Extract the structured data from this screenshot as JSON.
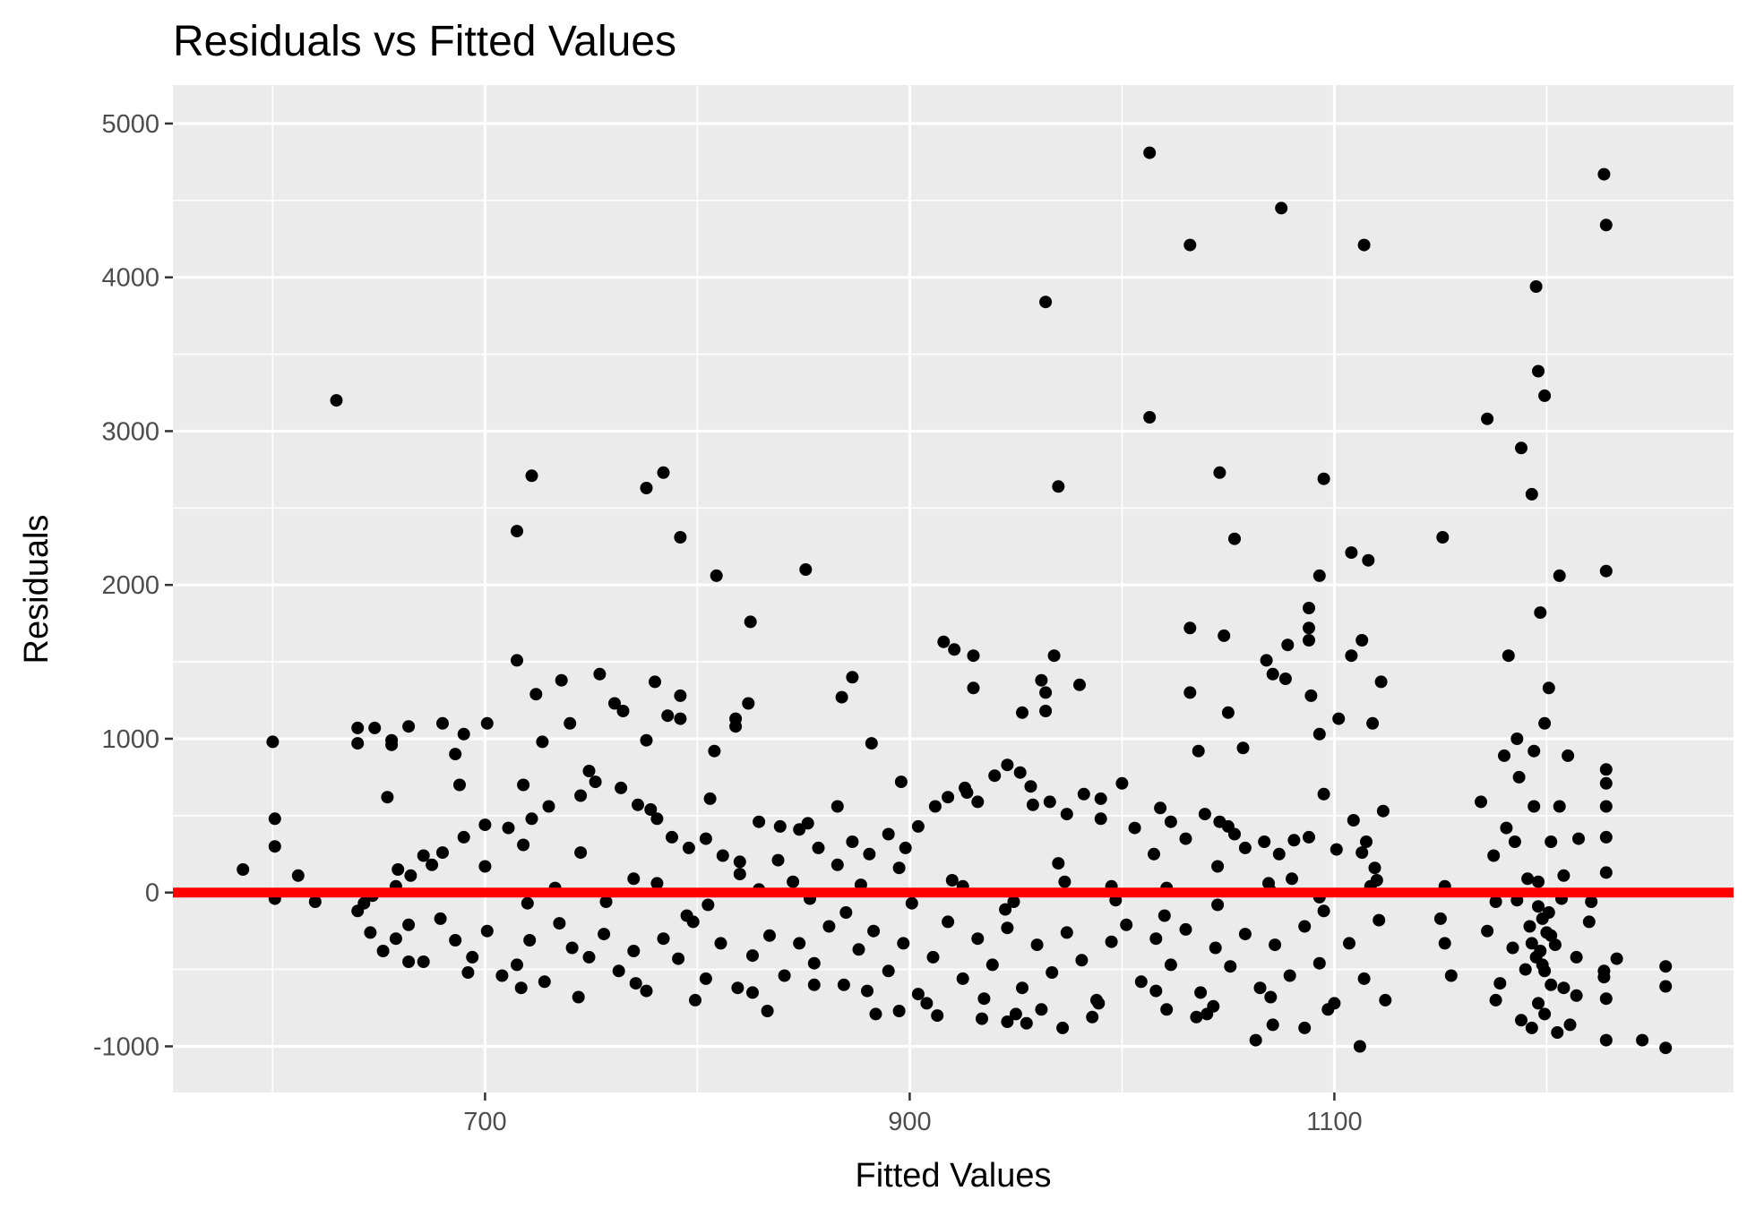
{
  "chart_data": {
    "type": "scatter",
    "title": "Residuals vs Fitted Values",
    "xlabel": "Fitted Values",
    "ylabel": "Residuals",
    "xlim": [
      553,
      1288
    ],
    "ylim": [
      -1300,
      5250
    ],
    "x_ticks": [
      700,
      900,
      1100
    ],
    "x_tick_labels": [
      "700",
      "900",
      "1100"
    ],
    "y_ticks": [
      -1000,
      0,
      1000,
      2000,
      3000,
      4000,
      5000
    ],
    "y_tick_labels": [
      "-1000",
      "0",
      "1000",
      "2000",
      "3000",
      "4000",
      "5000"
    ],
    "grid": true,
    "legend": "none",
    "colors": {
      "panel_background": "#ebebeb",
      "grid_line": "#ffffff",
      "point": "#000000",
      "reference_line": "#ff0000",
      "tick_label": "#4d4d4d"
    },
    "reference_line": {
      "y": 0
    },
    "points": [
      [
        586,
        150
      ],
      [
        600,
        980
      ],
      [
        601,
        480
      ],
      [
        601,
        300
      ],
      [
        601,
        -40
      ],
      [
        612,
        110
      ],
      [
        620,
        -60
      ],
      [
        630,
        3200
      ],
      [
        715,
        2350
      ],
      [
        722,
        2710
      ],
      [
        776,
        2630
      ],
      [
        784,
        2730
      ],
      [
        792,
        2310
      ],
      [
        809,
        2060
      ],
      [
        825,
        1760
      ],
      [
        851,
        2100
      ],
      [
        964,
        3840
      ],
      [
        970,
        2640
      ],
      [
        1013,
        4810
      ],
      [
        1013,
        3090
      ],
      [
        1032,
        4210
      ],
      [
        1046,
        2730
      ],
      [
        1053,
        2300
      ],
      [
        1075,
        4450
      ],
      [
        1095,
        2690
      ],
      [
        1093,
        2060
      ],
      [
        1108,
        2210
      ],
      [
        1114,
        4210
      ],
      [
        1116,
        2160
      ],
      [
        1151,
        2310
      ],
      [
        1172,
        3080
      ],
      [
        1188,
        2890
      ],
      [
        1193,
        2590
      ],
      [
        1195,
        3940
      ],
      [
        1196,
        3390
      ],
      [
        1199,
        3230
      ],
      [
        1206,
        2060
      ],
      [
        1197,
        1820
      ],
      [
        1227,
        4670
      ],
      [
        1228,
        4340
      ],
      [
        1228,
        2090
      ],
      [
        715,
        1510
      ],
      [
        724,
        1290
      ],
      [
        736,
        1380
      ],
      [
        754,
        1420
      ],
      [
        761,
        1230
      ],
      [
        780,
        1370
      ],
      [
        786,
        1150
      ],
      [
        792,
        1280
      ],
      [
        792,
        1130
      ],
      [
        808,
        920
      ],
      [
        818,
        1130
      ],
      [
        818,
        1080
      ],
      [
        824,
        1230
      ],
      [
        740,
        1100
      ],
      [
        765,
        1180
      ],
      [
        776,
        990
      ],
      [
        868,
        1270
      ],
      [
        873,
        1400
      ],
      [
        882,
        970
      ],
      [
        916,
        1630
      ],
      [
        921,
        1580
      ],
      [
        930,
        1540
      ],
      [
        930,
        1330
      ],
      [
        953,
        1170
      ],
      [
        962,
        1380
      ],
      [
        964,
        1300
      ],
      [
        964,
        1180
      ],
      [
        968,
        1540
      ],
      [
        980,
        1350
      ],
      [
        1032,
        1720
      ],
      [
        1032,
        1300
      ],
      [
        1048,
        1670
      ],
      [
        1050,
        1170
      ],
      [
        1057,
        940
      ],
      [
        1068,
        1510
      ],
      [
        1071,
        1420
      ],
      [
        1077,
        1390
      ],
      [
        1078,
        1610
      ],
      [
        1088,
        1850
      ],
      [
        1088,
        1720
      ],
      [
        1088,
        1640
      ],
      [
        1089,
        1280
      ],
      [
        1093,
        1030
      ],
      [
        1102,
        1130
      ],
      [
        1108,
        1540
      ],
      [
        1113,
        1640
      ],
      [
        1118,
        1100
      ],
      [
        1122,
        1370
      ],
      [
        1182,
        1540
      ],
      [
        1186,
        1000
      ],
      [
        1194,
        920
      ],
      [
        1199,
        1100
      ],
      [
        1201,
        1330
      ],
      [
        640,
        1070
      ],
      [
        640,
        970
      ],
      [
        648,
        1070
      ],
      [
        656,
        990
      ],
      [
        656,
        960
      ],
      [
        664,
        1080
      ],
      [
        680,
        1100
      ],
      [
        686,
        900
      ],
      [
        690,
        1030
      ],
      [
        701,
        1100
      ],
      [
        727,
        980
      ],
      [
        1036,
        920
      ],
      [
        1180,
        890
      ],
      [
        1210,
        890
      ],
      [
        1228,
        800
      ],
      [
        1228,
        710
      ],
      [
        1228,
        560
      ],
      [
        1228,
        360
      ],
      [
        1228,
        130
      ],
      [
        1256,
        -480
      ],
      [
        1256,
        -610
      ],
      [
        1256,
        -1010
      ],
      [
        1245,
        -960
      ],
      [
        1228,
        -960
      ],
      [
        1233,
        -430
      ],
      [
        1227,
        -510
      ],
      [
        1227,
        -550
      ],
      [
        1228,
        -690
      ],
      [
        1214,
        -670
      ],
      [
        1112,
        -1000
      ],
      [
        1063,
        -960
      ],
      [
        1086,
        -880
      ],
      [
        1071,
        -860
      ],
      [
        1021,
        -760
      ],
      [
        1035,
        -810
      ],
      [
        1040,
        -790
      ],
      [
        946,
        -840
      ],
      [
        934,
        -820
      ],
      [
        950,
        -790
      ],
      [
        955,
        -850
      ],
      [
        972,
        -880
      ],
      [
        986,
        -810
      ],
      [
        913,
        -800
      ],
      [
        895,
        -770
      ],
      [
        884,
        -790
      ],
      [
        833,
        -770
      ],
      [
        643,
        -70
      ],
      [
        647,
        -20
      ],
      [
        658,
        40
      ],
      [
        659,
        150
      ],
      [
        665,
        110
      ],
      [
        671,
        240
      ],
      [
        675,
        180
      ],
      [
        680,
        260
      ],
      [
        690,
        360
      ],
      [
        700,
        440
      ],
      [
        711,
        420
      ],
      [
        718,
        310
      ],
      [
        722,
        480
      ],
      [
        730,
        560
      ],
      [
        745,
        630
      ],
      [
        752,
        720
      ],
      [
        764,
        680
      ],
      [
        772,
        570
      ],
      [
        781,
        480
      ],
      [
        788,
        360
      ],
      [
        796,
        290
      ],
      [
        804,
        350
      ],
      [
        812,
        240
      ],
      [
        820,
        120
      ],
      [
        829,
        460
      ],
      [
        839,
        430
      ],
      [
        848,
        410
      ],
      [
        852,
        450
      ],
      [
        857,
        290
      ],
      [
        866,
        180
      ],
      [
        873,
        330
      ],
      [
        881,
        250
      ],
      [
        890,
        380
      ],
      [
        898,
        290
      ],
      [
        904,
        430
      ],
      [
        912,
        560
      ],
      [
        918,
        620
      ],
      [
        926,
        680
      ],
      [
        932,
        590
      ],
      [
        940,
        760
      ],
      [
        946,
        830
      ],
      [
        952,
        780
      ],
      [
        957,
        690
      ],
      [
        966,
        590
      ],
      [
        974,
        510
      ],
      [
        982,
        640
      ],
      [
        990,
        610
      ],
      [
        1000,
        710
      ],
      [
        1006,
        420
      ],
      [
        1015,
        250
      ],
      [
        1023,
        460
      ],
      [
        1030,
        350
      ],
      [
        1039,
        510
      ],
      [
        1046,
        460
      ],
      [
        1053,
        380
      ],
      [
        1058,
        290
      ],
      [
        1067,
        330
      ],
      [
        1074,
        250
      ],
      [
        1080,
        90
      ],
      [
        1088,
        360
      ],
      [
        1095,
        640
      ],
      [
        1101,
        280
      ],
      [
        1109,
        470
      ],
      [
        1115,
        330
      ],
      [
        1120,
        80
      ],
      [
        1123,
        530
      ],
      [
        1169,
        590
      ],
      [
        1175,
        240
      ],
      [
        1181,
        420
      ],
      [
        1187,
        750
      ],
      [
        1194,
        560
      ],
      [
        1202,
        330
      ],
      [
        1208,
        110
      ],
      [
        1215,
        350
      ],
      [
        1221,
        -60
      ],
      [
        640,
        -120
      ],
      [
        646,
        -260
      ],
      [
        652,
        -380
      ],
      [
        658,
        -300
      ],
      [
        664,
        -210
      ],
      [
        671,
        -450
      ],
      [
        679,
        -170
      ],
      [
        686,
        -310
      ],
      [
        694,
        -420
      ],
      [
        701,
        -250
      ],
      [
        708,
        -540
      ],
      [
        715,
        -470
      ],
      [
        721,
        -310
      ],
      [
        728,
        -580
      ],
      [
        735,
        -200
      ],
      [
        741,
        -360
      ],
      [
        749,
        -420
      ],
      [
        756,
        -270
      ],
      [
        763,
        -510
      ],
      [
        770,
        -380
      ],
      [
        776,
        -640
      ],
      [
        784,
        -300
      ],
      [
        791,
        -430
      ],
      [
        798,
        -190
      ],
      [
        804,
        -560
      ],
      [
        811,
        -330
      ],
      [
        819,
        -620
      ],
      [
        826,
        -410
      ],
      [
        834,
        -280
      ],
      [
        841,
        -540
      ],
      [
        848,
        -330
      ],
      [
        855,
        -460
      ],
      [
        862,
        -220
      ],
      [
        869,
        -600
      ],
      [
        876,
        -370
      ],
      [
        883,
        -250
      ],
      [
        890,
        -510
      ],
      [
        897,
        -330
      ],
      [
        904,
        -660
      ],
      [
        911,
        -420
      ],
      [
        918,
        -190
      ],
      [
        925,
        -560
      ],
      [
        932,
        -300
      ],
      [
        939,
        -470
      ],
      [
        946,
        -230
      ],
      [
        953,
        -620
      ],
      [
        960,
        -340
      ],
      [
        967,
        -520
      ],
      [
        974,
        -260
      ],
      [
        981,
        -440
      ],
      [
        988,
        -700
      ],
      [
        995,
        -320
      ],
      [
        1002,
        -210
      ],
      [
        1009,
        -580
      ],
      [
        1016,
        -300
      ],
      [
        1023,
        -470
      ],
      [
        1030,
        -240
      ],
      [
        1037,
        -650
      ],
      [
        1044,
        -360
      ],
      [
        1051,
        -480
      ],
      [
        1058,
        -270
      ],
      [
        1065,
        -620
      ],
      [
        1072,
        -340
      ],
      [
        1079,
        -540
      ],
      [
        1086,
        -220
      ],
      [
        1093,
        -460
      ],
      [
        1100,
        -720
      ],
      [
        1107,
        -330
      ],
      [
        1114,
        -560
      ],
      [
        1121,
        -180
      ],
      [
        1150,
        -170
      ],
      [
        1152,
        -330
      ],
      [
        1155,
        -540
      ],
      [
        1172,
        -250
      ],
      [
        1178,
        -590
      ],
      [
        1184,
        -360
      ],
      [
        1190,
        -500
      ],
      [
        1196,
        -720
      ],
      [
        1202,
        -280
      ],
      [
        1208,
        -620
      ],
      [
        1214,
        -420
      ],
      [
        1220,
        -190
      ],
      [
        733,
        30
      ],
      [
        757,
        -60
      ],
      [
        781,
        60
      ],
      [
        805,
        -80
      ],
      [
        829,
        20
      ],
      [
        853,
        -40
      ],
      [
        877,
        50
      ],
      [
        901,
        -70
      ],
      [
        925,
        40
      ],
      [
        949,
        -60
      ],
      [
        973,
        70
      ],
      [
        997,
        -50
      ],
      [
        1021,
        30
      ],
      [
        1045,
        -80
      ],
      [
        1069,
        60
      ],
      [
        1093,
        -30
      ],
      [
        1117,
        40
      ],
      [
        1152,
        40
      ],
      [
        1176,
        -60
      ],
      [
        1196,
        70
      ],
      [
        1207,
        -40
      ],
      [
        664,
        -450
      ],
      [
        692,
        -520
      ],
      [
        717,
        -620
      ],
      [
        744,
        -680
      ],
      [
        771,
        -590
      ],
      [
        799,
        -700
      ],
      [
        826,
        -650
      ],
      [
        855,
        -600
      ],
      [
        880,
        -640
      ],
      [
        908,
        -720
      ],
      [
        935,
        -690
      ],
      [
        962,
        -760
      ],
      [
        989,
        -720
      ],
      [
        1016,
        -640
      ],
      [
        1043,
        -740
      ],
      [
        1070,
        -680
      ],
      [
        1097,
        -760
      ],
      [
        1124,
        -700
      ],
      [
        1176,
        -700
      ],
      [
        1188,
        -830
      ],
      [
        1193,
        -880
      ],
      [
        1199,
        -790
      ],
      [
        1205,
        -910
      ],
      [
        1211,
        -860
      ],
      [
        1196,
        -90
      ],
      [
        1198,
        -170
      ],
      [
        1200,
        -260
      ],
      [
        1193,
        -330
      ],
      [
        1195,
        -420
      ],
      [
        1199,
        -510
      ],
      [
        1202,
        -600
      ],
      [
        1192,
        -220
      ],
      [
        1197,
        -380
      ],
      [
        1201,
        -130
      ],
      [
        1204,
        -340
      ],
      [
        1198,
        -470
      ],
      [
        700,
        170
      ],
      [
        720,
        -70
      ],
      [
        745,
        260
      ],
      [
        770,
        90
      ],
      [
        795,
        -150
      ],
      [
        820,
        200
      ],
      [
        845,
        70
      ],
      [
        870,
        -130
      ],
      [
        895,
        160
      ],
      [
        920,
        80
      ],
      [
        945,
        -110
      ],
      [
        970,
        190
      ],
      [
        995,
        40
      ],
      [
        1020,
        -150
      ],
      [
        1045,
        170
      ],
      [
        1070,
        10
      ],
      [
        1095,
        -120
      ],
      [
        1119,
        160
      ],
      [
        1186,
        -50
      ],
      [
        1191,
        90
      ],
      [
        654,
        620
      ],
      [
        688,
        700
      ],
      [
        718,
        700
      ],
      [
        749,
        790
      ],
      [
        778,
        540
      ],
      [
        806,
        610
      ],
      [
        838,
        210
      ],
      [
        866,
        560
      ],
      [
        896,
        720
      ],
      [
        927,
        650
      ],
      [
        958,
        570
      ],
      [
        990,
        480
      ],
      [
        1018,
        550
      ],
      [
        1050,
        430
      ],
      [
        1081,
        340
      ],
      [
        1113,
        260
      ],
      [
        1185,
        330
      ],
      [
        1206,
        560
      ]
    ]
  }
}
